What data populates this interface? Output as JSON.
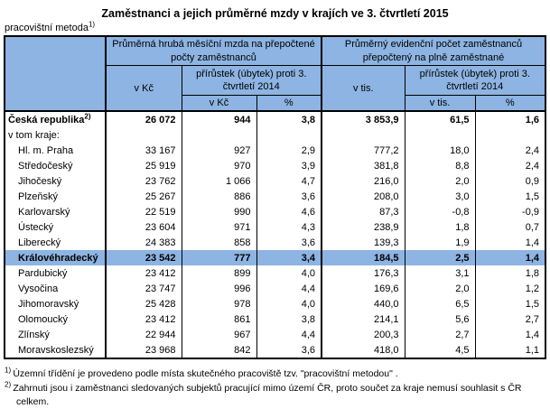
{
  "title": "Zaměstnanci a jejich průměrné mzdy v krajích ve 3. čtvrtletí 2015",
  "subtitle": {
    "text": "pracovištní metoda",
    "ref": "1)"
  },
  "colors": {
    "header_bg": "#8DB4E2",
    "highlight_bg": "#8DB4E2",
    "border": "#000000",
    "text": "#000000"
  },
  "table": {
    "col_groups": [
      {
        "label": "Průměrná hrubá měsíční mzda na přepočtené počty zaměstnanců"
      },
      {
        "label": "Průměrný evidenční počet zaměstnanců přepočtený na plně zaměstnané"
      }
    ],
    "sub_headers": {
      "wage_unit": "v Kč",
      "change_label": "přírůstek (úbytek) proti 3. čtvrtletí 2014",
      "count_unit": "v tis.",
      "change_sub": {
        "wage_unit": "v Kč",
        "wage_pct": "%",
        "count_unit": "v tis.",
        "count_pct": "%"
      }
    },
    "rows": [
      {
        "label": "Česká republika",
        "sup": "2)",
        "bold": true,
        "highlight": false,
        "indent": false,
        "values": [
          "26 072",
          "944",
          "3,8",
          "3 853,9",
          "61,5",
          "1,6"
        ]
      },
      {
        "label": "v tom kraje:",
        "sup": "",
        "bold": false,
        "highlight": false,
        "indent": false,
        "values": [
          "",
          "",
          "",
          "",
          "",
          ""
        ]
      },
      {
        "label": "Hl. m. Praha",
        "sup": "",
        "bold": false,
        "highlight": false,
        "indent": true,
        "values": [
          "33 167",
          "927",
          "2,9",
          "777,2",
          "18,0",
          "2,4"
        ]
      },
      {
        "label": "Středočeský",
        "sup": "",
        "bold": false,
        "highlight": false,
        "indent": true,
        "values": [
          "25 919",
          "970",
          "3,9",
          "381,8",
          "8,8",
          "2,4"
        ]
      },
      {
        "label": "Jihočeský",
        "sup": "",
        "bold": false,
        "highlight": false,
        "indent": true,
        "values": [
          "23 762",
          "1 066",
          "4,7",
          "216,0",
          "2,0",
          "0,9"
        ]
      },
      {
        "label": "Plzeňský",
        "sup": "",
        "bold": false,
        "highlight": false,
        "indent": true,
        "values": [
          "25 267",
          "886",
          "3,6",
          "208,0",
          "3,0",
          "1,5"
        ]
      },
      {
        "label": "Karlovarský",
        "sup": "",
        "bold": false,
        "highlight": false,
        "indent": true,
        "values": [
          "22 519",
          "990",
          "4,6",
          "87,3",
          "-0,8",
          "-0,9"
        ]
      },
      {
        "label": "Ústecký",
        "sup": "",
        "bold": false,
        "highlight": false,
        "indent": true,
        "values": [
          "23 604",
          "971",
          "4,3",
          "238,9",
          "1,8",
          "0,7"
        ]
      },
      {
        "label": "Liberecký",
        "sup": "",
        "bold": false,
        "highlight": false,
        "indent": true,
        "values": [
          "24 383",
          "858",
          "3,6",
          "139,3",
          "1,9",
          "1,4"
        ]
      },
      {
        "label": "Královéhradecký",
        "sup": "",
        "bold": true,
        "highlight": true,
        "indent": true,
        "values": [
          "23 542",
          "777",
          "3,4",
          "184,5",
          "2,5",
          "1,4"
        ]
      },
      {
        "label": "Pardubický",
        "sup": "",
        "bold": false,
        "highlight": false,
        "indent": true,
        "values": [
          "23 412",
          "899",
          "4,0",
          "176,3",
          "3,1",
          "1,8"
        ]
      },
      {
        "label": "Vysočina",
        "sup": "",
        "bold": false,
        "highlight": false,
        "indent": true,
        "values": [
          "23 747",
          "996",
          "4,4",
          "169,6",
          "2,0",
          "1,2"
        ]
      },
      {
        "label": "Jihomoravský",
        "sup": "",
        "bold": false,
        "highlight": false,
        "indent": true,
        "values": [
          "25 428",
          "978",
          "4,0",
          "440,0",
          "6,5",
          "1,5"
        ]
      },
      {
        "label": "Olomoucký",
        "sup": "",
        "bold": false,
        "highlight": false,
        "indent": true,
        "values": [
          "23 412",
          "861",
          "3,8",
          "214,1",
          "5,6",
          "2,7"
        ]
      },
      {
        "label": "Zlínský",
        "sup": "",
        "bold": false,
        "highlight": false,
        "indent": true,
        "values": [
          "22 944",
          "967",
          "4,4",
          "200,3",
          "2,7",
          "1,4"
        ]
      },
      {
        "label": "Moravskoslezský",
        "sup": "",
        "bold": false,
        "highlight": false,
        "indent": true,
        "values": [
          "23 968",
          "842",
          "3,6",
          "418,0",
          "4,5",
          "1,1"
        ]
      }
    ]
  },
  "footnotes": [
    {
      "ref": "1)",
      "text": "Územní třídění je provedeno podle místa skutečného pracoviště tzv. \"pracovištní metodou\" ."
    },
    {
      "ref": "2)",
      "text": "Zahrnuti jsou i zaměstnanci sledovaných subjektů pracující mimo území ČR, proto součet za kraje nemusí souhlasit s ČR celkem."
    }
  ]
}
